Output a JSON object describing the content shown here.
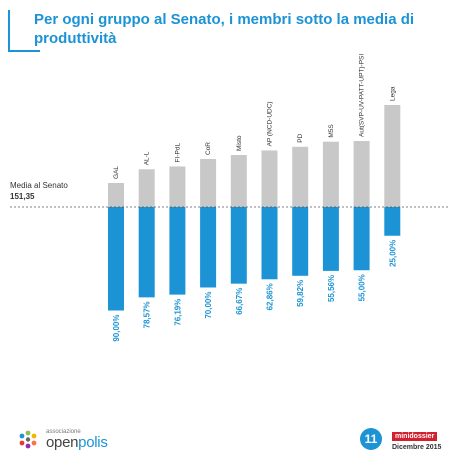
{
  "header": {
    "title": "Per ogni gruppo al Senato, i membri sotto la media di produttività"
  },
  "reference": {
    "label": "Media al Senato",
    "value_label": "151,35"
  },
  "footer": {
    "logo_small": "associazione",
    "logo_part1": "open",
    "logo_part2": "polis",
    "page_number": "11",
    "badge": "minidossier",
    "date": "Dicembre 2015"
  },
  "colors": {
    "accent": "#1c93d4",
    "gray": "#c8c8c8",
    "text": "#333333",
    "badge": "#d3202f"
  },
  "chart_data": {
    "type": "bar",
    "title": "Per ogni gruppo al Senato, i membri sotto la media di produttività",
    "reference_line": {
      "label": "Media al Senato",
      "value": 151.35
    },
    "categories": [
      "GAL",
      "AL-L",
      "FI-PdL",
      "CoR",
      "Misto",
      "AP (NCD-UDC)",
      "PD",
      "M5S",
      "Aut(SVP-UV-PATT-UPT)-PSI",
      "Lega"
    ],
    "series": [
      {
        "values": [
          90.0,
          78.57,
          76.19,
          70.0,
          66.67,
          62.86,
          59.82,
          55.56,
          55.0,
          25.0
        ]
      }
    ],
    "labels": [
      "90,00%",
      "78,57%",
      "76,19%",
      "70,00%",
      "66,67%",
      "62,86%",
      "59,82%",
      "55,56%",
      "55,00%",
      "25,00%"
    ],
    "ylim": [
      0,
      100
    ]
  }
}
